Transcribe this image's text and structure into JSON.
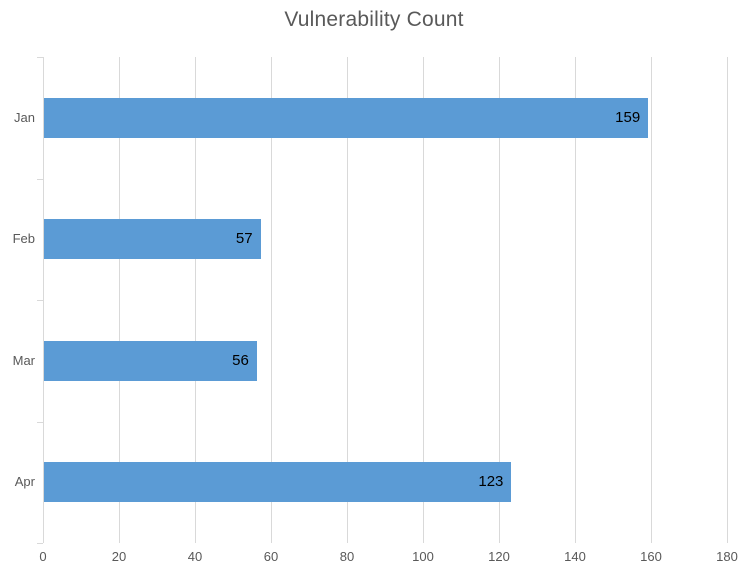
{
  "title": "Vulnerability Count",
  "colors": {
    "bar": "#5B9BD5",
    "gridline": "#D9D9D9",
    "axis_text": "#595959",
    "title_text": "#595959",
    "data_label_text": "#000000",
    "background": "#FFFFFF"
  },
  "chart_data": {
    "type": "bar",
    "orientation": "horizontal",
    "title": "Vulnerability Count",
    "categories": [
      "Jan",
      "Feb",
      "Mar",
      "Apr"
    ],
    "values": [
      159,
      57,
      56,
      123
    ],
    "xlabel": "",
    "ylabel": "",
    "xlim": [
      0,
      180
    ],
    "x_ticks": [
      0,
      20,
      40,
      60,
      80,
      100,
      120,
      140,
      160,
      180
    ],
    "grid": "vertical",
    "legend": "none",
    "data_labels": "inside-end"
  }
}
